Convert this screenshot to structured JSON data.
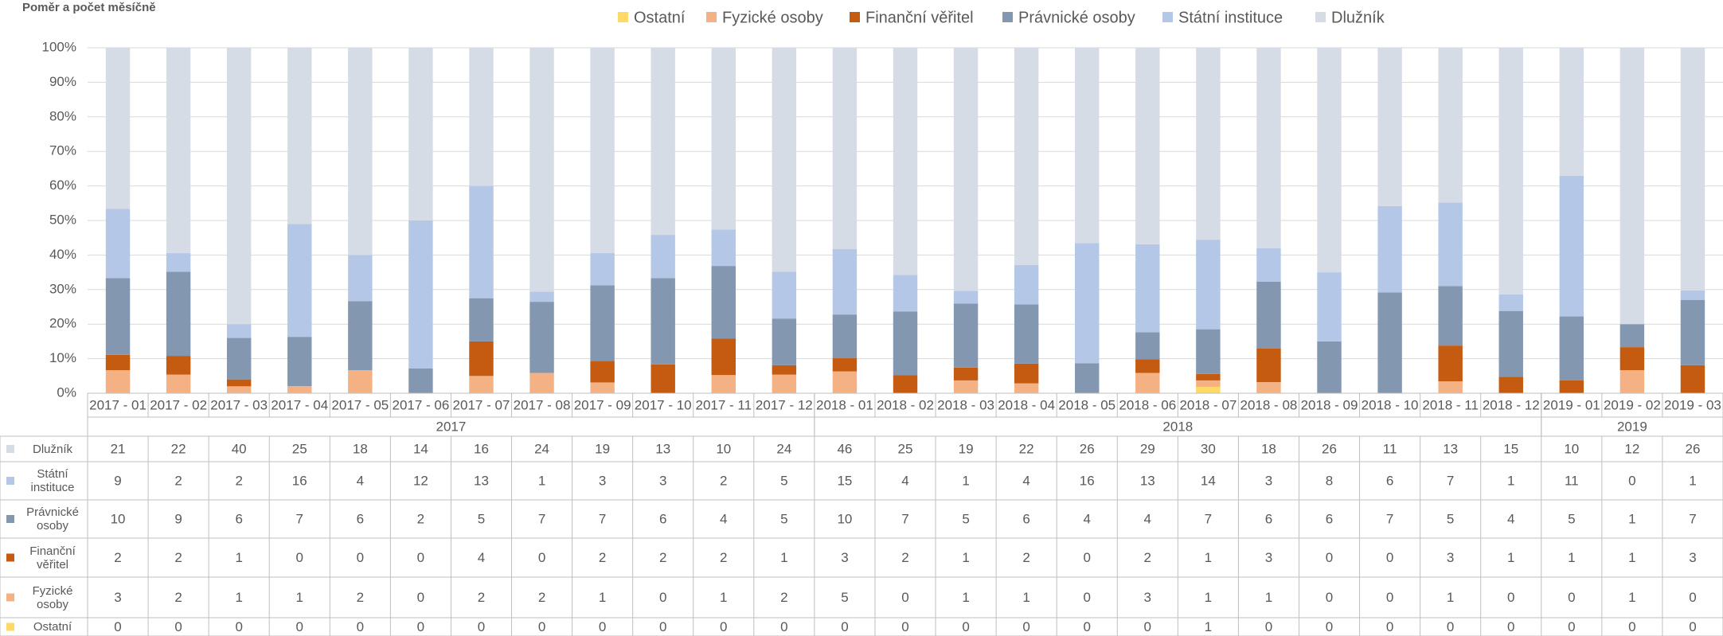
{
  "chart_data": {
    "type": "bar",
    "stacking": "percent",
    "title": "Poměr a počet měsíčně",
    "categories": [
      "2017 - 01",
      "2017 - 02",
      "2017 - 03",
      "2017 - 04",
      "2017 - 05",
      "2017 - 06",
      "2017 - 07",
      "2017 - 08",
      "2017 - 09",
      "2017 - 10",
      "2017 - 11",
      "2017 - 12",
      "2018 - 01",
      "2018 - 02",
      "2018 - 03",
      "2018 - 04",
      "2018 - 05",
      "2018 - 06",
      "2018 - 07",
      "2018 - 08",
      "2018 - 09",
      "2018 - 10",
      "2018 - 11",
      "2018 - 12",
      "2019 - 01",
      "2019 - 02",
      "2019 - 03"
    ],
    "category_groups": [
      {
        "label": "2017",
        "count": 12
      },
      {
        "label": "2018",
        "count": 12
      },
      {
        "label": "2019",
        "count": 3
      }
    ],
    "series": [
      {
        "name": "Ostatní",
        "color": "#ffd966",
        "values": [
          0,
          0,
          0,
          0,
          0,
          0,
          0,
          0,
          0,
          0,
          0,
          0,
          0,
          0,
          0,
          0,
          0,
          0,
          1,
          0,
          0,
          0,
          0,
          0,
          0,
          0,
          0
        ]
      },
      {
        "name": "Fyzické osoby",
        "color": "#f4b183",
        "values": [
          3,
          2,
          1,
          1,
          2,
          0,
          2,
          2,
          1,
          0,
          1,
          2,
          5,
          0,
          1,
          1,
          0,
          3,
          1,
          1,
          0,
          0,
          1,
          0,
          0,
          1,
          0
        ]
      },
      {
        "name": "Finanční věřitel",
        "color": "#c55a11",
        "values": [
          2,
          2,
          1,
          0,
          0,
          0,
          4,
          0,
          2,
          2,
          2,
          1,
          3,
          2,
          1,
          2,
          0,
          2,
          1,
          3,
          0,
          0,
          3,
          1,
          1,
          1,
          3
        ]
      },
      {
        "name": "Právnické osoby",
        "color": "#8497b0",
        "values": [
          10,
          9,
          6,
          7,
          6,
          2,
          5,
          7,
          7,
          6,
          4,
          5,
          10,
          7,
          5,
          6,
          4,
          4,
          7,
          6,
          6,
          7,
          5,
          4,
          5,
          1,
          7
        ]
      },
      {
        "name": "Státní instituce",
        "color": "#b4c7e7",
        "values": [
          9,
          2,
          2,
          16,
          4,
          12,
          13,
          1,
          3,
          3,
          2,
          5,
          15,
          4,
          1,
          4,
          16,
          13,
          14,
          3,
          8,
          6,
          7,
          1,
          11,
          0,
          1
        ]
      },
      {
        "name": "Dlužník",
        "color": "#d6dce5",
        "values": [
          21,
          22,
          40,
          25,
          18,
          14,
          16,
          24,
          19,
          13,
          10,
          24,
          46,
          25,
          19,
          22,
          26,
          29,
          30,
          18,
          26,
          11,
          13,
          15,
          10,
          12,
          26
        ]
      }
    ],
    "ylim": [
      0,
      100
    ],
    "yticks": [
      {
        "value": 0,
        "label": "0%"
      },
      {
        "value": 10,
        "label": "10%"
      },
      {
        "value": 20,
        "label": "20%"
      },
      {
        "value": 30,
        "label": "30%"
      },
      {
        "value": 40,
        "label": "40%"
      },
      {
        "value": 50,
        "label": "50%"
      },
      {
        "value": 60,
        "label": "60%"
      },
      {
        "value": 70,
        "label": "70%"
      },
      {
        "value": 80,
        "label": "80%"
      },
      {
        "value": 90,
        "label": "90%"
      },
      {
        "value": 100,
        "label": "100%"
      }
    ],
    "grid": true,
    "legend": "top",
    "data_table": true
  }
}
